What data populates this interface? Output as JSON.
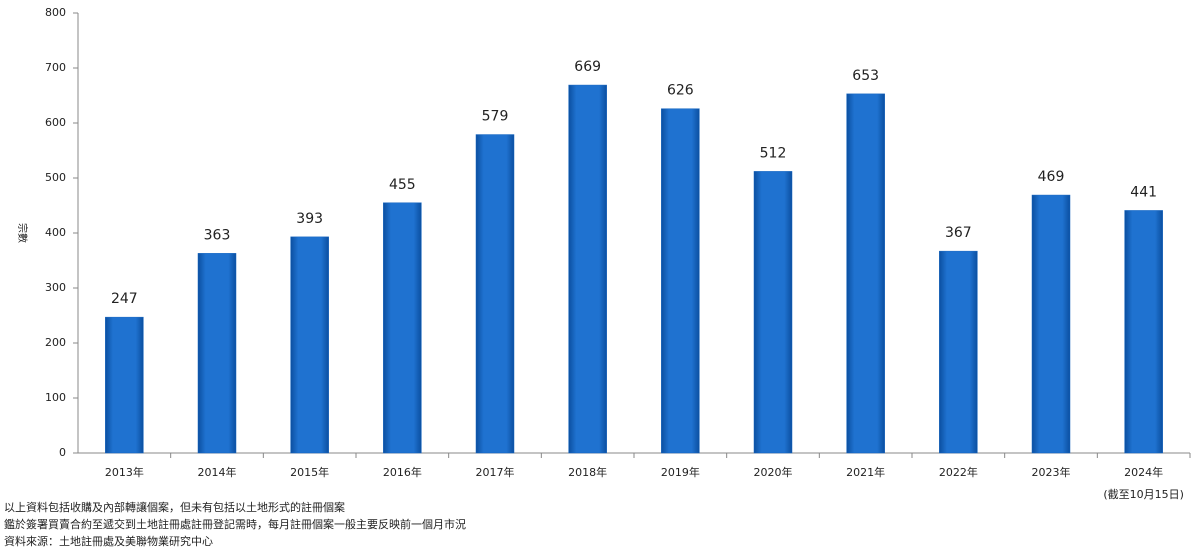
{
  "chart_data": {
    "type": "bar",
    "y_label": "宗數",
    "categories": [
      "2013年",
      "2014年",
      "2015年",
      "2016年",
      "2017年",
      "2018年",
      "2019年",
      "2020年",
      "2021年",
      "2022年",
      "2023年",
      "2024年"
    ],
    "values": [
      247,
      363,
      393,
      455,
      579,
      669,
      626,
      512,
      653,
      367,
      469,
      441
    ],
    "color": "#1565c0",
    "ylim": [
      0,
      800
    ],
    "yticks": [
      0,
      100,
      200,
      300,
      400,
      500,
      600,
      700,
      800
    ],
    "grid": false,
    "annotations": [
      "(截至10月15日)"
    ],
    "notes": [
      "以上資料包括收購及內部轉讓個案，但未有包括以土地形式的註冊個案",
      "鑑於簽署買賣合約至遞交到土地註冊處註冊登記需時，每月註冊個案一般主要反映前一個月市況",
      "資料來源：土地註冊處及美聯物業研究中心"
    ]
  }
}
